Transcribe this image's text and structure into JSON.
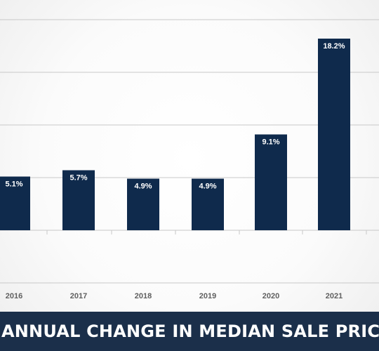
{
  "chart_data": {
    "type": "bar",
    "title": "ANNUAL CHANGE IN MEDIAN SALE PRICES",
    "categories": [
      "2016",
      "2017",
      "2018",
      "2019",
      "2020",
      "2021"
    ],
    "values": [
      5.1,
      5.7,
      4.9,
      4.9,
      9.1,
      18.2
    ],
    "data_labels": [
      "5.1%",
      "5.7%",
      "4.9%",
      "4.9%",
      "9.1%",
      "18.2%"
    ],
    "ylim": [
      0,
      20
    ],
    "grid": true,
    "colors": {
      "bar": "#0f2a4c",
      "grid": "#c8c8c8",
      "banner": "#1b2f4a",
      "banner_text": "#ffffff",
      "tick_text": "#5f5f5f"
    }
  }
}
